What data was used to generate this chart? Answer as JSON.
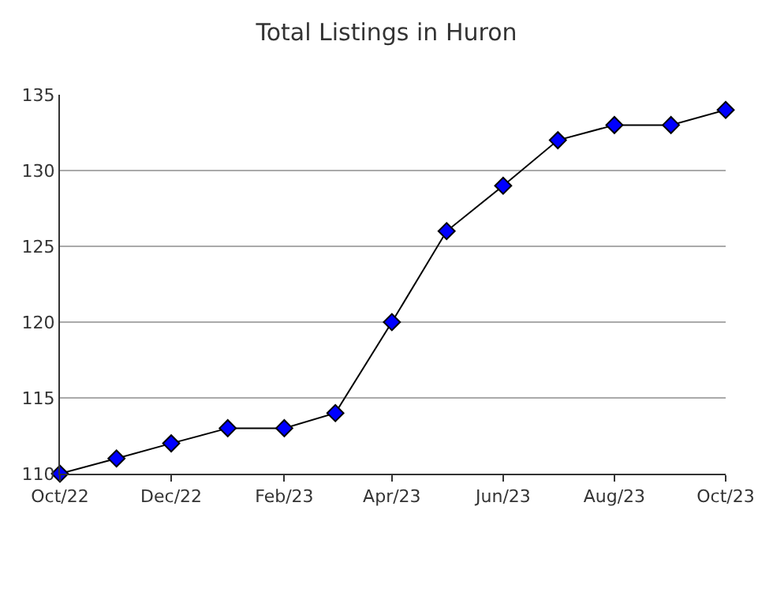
{
  "chart_data": {
    "type": "line",
    "title": "Total Listings in Huron",
    "x": [
      "2022-10",
      "2022-11",
      "2022-12",
      "2023-01",
      "2023-02",
      "2023-03",
      "2023-04",
      "2023-05",
      "2023-06",
      "2023-07",
      "2023-08",
      "2023-09",
      "2023-10"
    ],
    "series": [
      {
        "color": "#0000ff",
        "values": [
          110,
          111,
          112,
          113,
          113,
          114,
          120,
          126,
          129,
          132,
          133,
          133,
          134
        ]
      }
    ],
    "xlim": [
      "2022-10",
      "2023-10"
    ],
    "xticks": [
      {
        "value": "2022-10",
        "label": "Oct/22"
      },
      {
        "value": "2022-12",
        "label": "Dec/22"
      },
      {
        "value": "2023-02",
        "label": "Feb/23"
      },
      {
        "value": "2023-04",
        "label": "Apr/23"
      },
      {
        "value": "2023-06",
        "label": "Jun/23"
      },
      {
        "value": "2023-08",
        "label": "Aug/23"
      },
      {
        "value": "2023-10",
        "label": "Oct/23"
      }
    ],
    "ylim": [
      110,
      135
    ],
    "yticks": [
      110,
      115,
      120,
      125,
      130,
      135
    ],
    "grid": "y",
    "marker": "diamond",
    "line_style": "solid",
    "legend": false
  }
}
